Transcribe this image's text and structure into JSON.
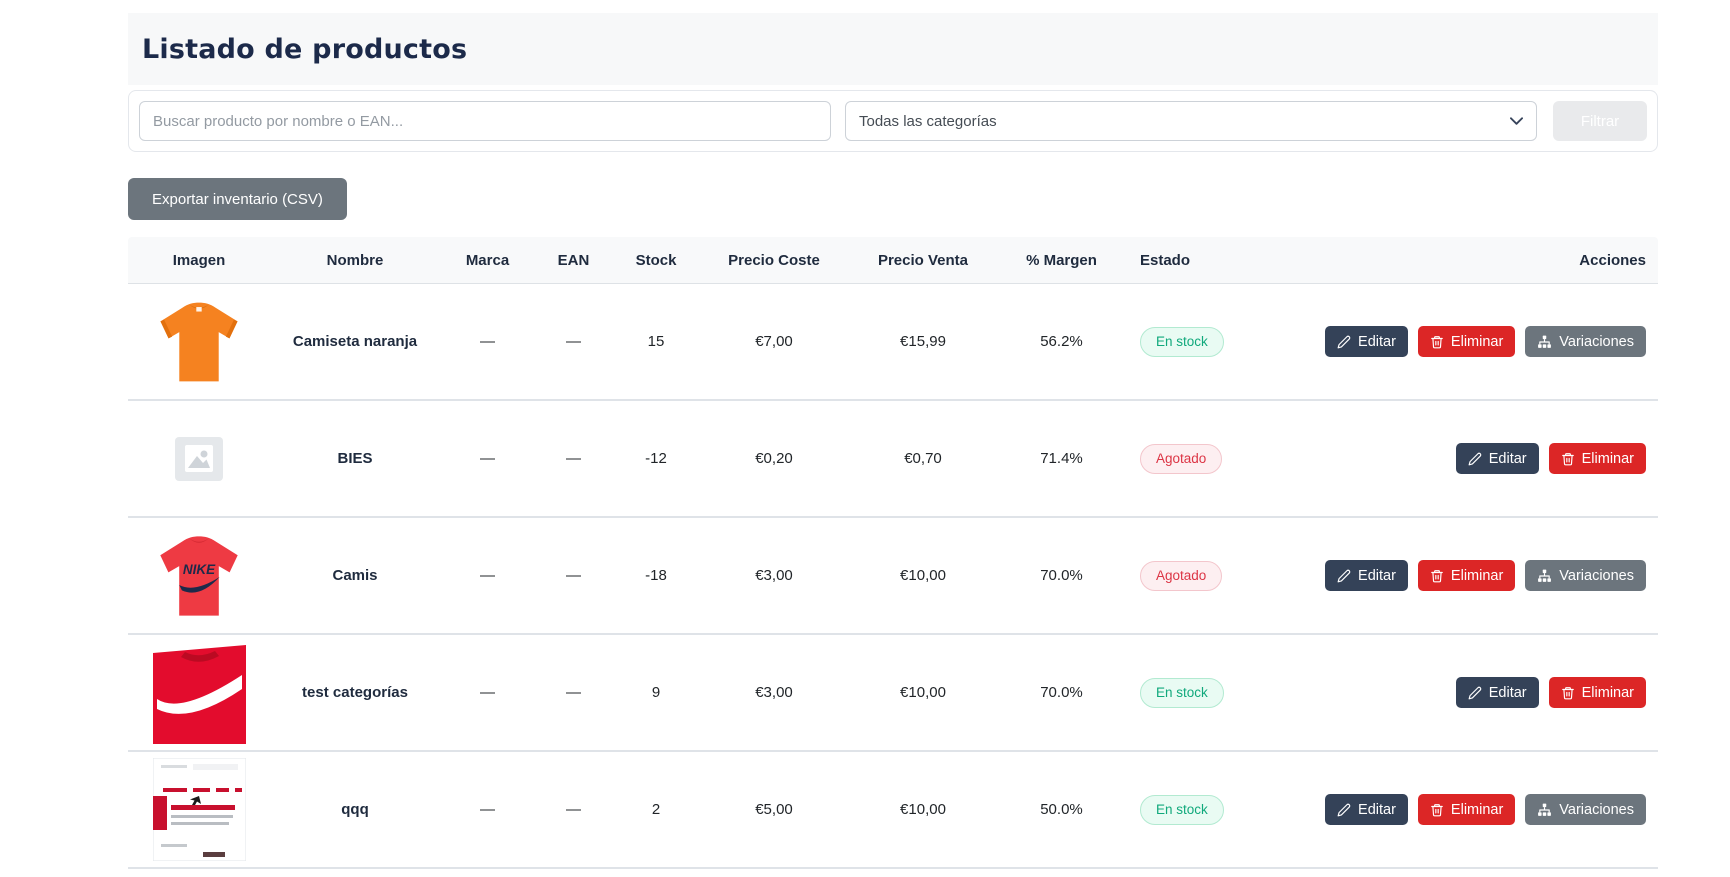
{
  "page": {
    "title": "Listado de productos"
  },
  "filters": {
    "search_placeholder": "Buscar producto por nombre o EAN...",
    "category_selected": "Todas las categorías",
    "filter_button": "Filtrar"
  },
  "toolbar": {
    "export_button": "Exportar inventario (CSV)"
  },
  "table": {
    "headers": [
      "Imagen",
      "Nombre",
      "Marca",
      "EAN",
      "Stock",
      "Precio Coste",
      "Precio Venta",
      "% Margen",
      "Estado",
      "Acciones"
    ],
    "rows": [
      {
        "name": "Camiseta naranja",
        "brand": "—",
        "ean": "—",
        "stock": "15",
        "cost": "€7,00",
        "price": "€15,99",
        "margin": "56.2%",
        "status": "En stock",
        "status_type": "in_stock",
        "image": "orange-tshirt",
        "actions": [
          "Editar",
          "Eliminar",
          "Variaciones"
        ]
      },
      {
        "name": "BIES",
        "brand": "—",
        "ean": "—",
        "stock": "-12",
        "cost": "€0,20",
        "price": "€0,70",
        "margin": "71.4%",
        "status": "Agotado",
        "status_type": "out_of_stock",
        "image": "placeholder",
        "actions": [
          "Editar",
          "Eliminar"
        ]
      },
      {
        "name": "Camis",
        "brand": "—",
        "ean": "—",
        "stock": "-18",
        "cost": "€3,00",
        "price": "€10,00",
        "margin": "70.0%",
        "status": "Agotado",
        "status_type": "out_of_stock",
        "image": "nike-logo-tshirt",
        "actions": [
          "Editar",
          "Eliminar",
          "Variaciones"
        ]
      },
      {
        "name": "test categorías",
        "brand": "—",
        "ean": "—",
        "stock": "9",
        "cost": "€3,00",
        "price": "€10,00",
        "margin": "70.0%",
        "status": "En stock",
        "status_type": "in_stock",
        "image": "nike-swoosh-tshirt",
        "actions": [
          "Editar",
          "Eliminar"
        ]
      },
      {
        "name": "qqq",
        "brand": "—",
        "ean": "—",
        "stock": "2",
        "cost": "€5,00",
        "price": "€10,00",
        "margin": "50.0%",
        "status": "En stock",
        "status_type": "in_stock",
        "image": "document",
        "actions": [
          "Editar",
          "Eliminar",
          "Variaciones"
        ]
      }
    ]
  },
  "icons": {
    "edit": "pencil-icon",
    "delete": "trash-icon",
    "variations": "sitemap-icon",
    "select": "chevron-down-icon"
  },
  "colors": {
    "title_text": "#1c2a4a",
    "header_band": "#f7f8f9",
    "edit_button": "#344258",
    "delete_button": "#dc2626",
    "variations_button": "#6c757d",
    "export_button": "#6c757d",
    "in_stock_text": "#11a97c",
    "in_stock_bg": "#e9fbf3",
    "out_of_stock_text": "#dc3545",
    "out_of_stock_bg": "#fdeff1",
    "row_border": "#dfe3e8"
  }
}
